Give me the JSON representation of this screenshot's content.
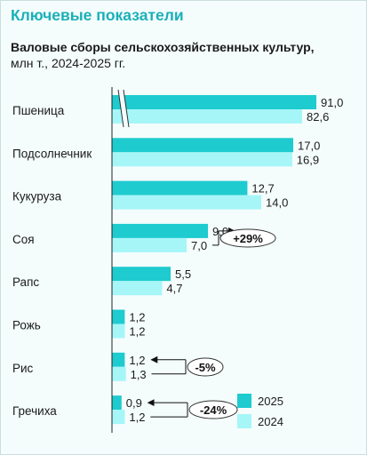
{
  "header": {
    "title": "Ключевые показатели",
    "subtitle_bold": "Валовые сборы сельскохозяйственных культур,",
    "subtitle_rest": " млн т., 2024-2025 гг."
  },
  "chart_data": {
    "type": "bar",
    "orientation": "horizontal",
    "categories": [
      "Пшеница",
      "Подсолнечник",
      "Кукуруза",
      "Соя",
      "Рапс",
      "Рожь",
      "Рис",
      "Гречиха"
    ],
    "series": [
      {
        "name": "2025",
        "color": "#1ecbcf",
        "values": [
          91.0,
          17.0,
          12.7,
          9.0,
          5.5,
          1.2,
          1.2,
          0.9
        ],
        "labels": [
          "91,0",
          "17,0",
          "12,7",
          "9,0",
          "5,5",
          "1,2",
          "1,2",
          "0,9"
        ]
      },
      {
        "name": "2024",
        "color": "#a6f6f8",
        "values": [
          82.6,
          16.9,
          14.0,
          7.0,
          4.7,
          1.2,
          1.3,
          1.2
        ],
        "labels": [
          "82,6",
          "16,9",
          "14,0",
          "7,0",
          "4,7",
          "1,2",
          "1,3",
          "1,2"
        ]
      }
    ],
    "axis_break": {
      "category": "Пшеница"
    },
    "annotations": [
      {
        "category": "Соя",
        "text": "+29%"
      },
      {
        "category": "Рис",
        "text": "-5%"
      },
      {
        "category": "Гречиха",
        "text": "-24%"
      }
    ],
    "legend": {
      "position": "bottom-right",
      "entries": [
        "2025",
        "2024"
      ]
    },
    "grid": false
  }
}
